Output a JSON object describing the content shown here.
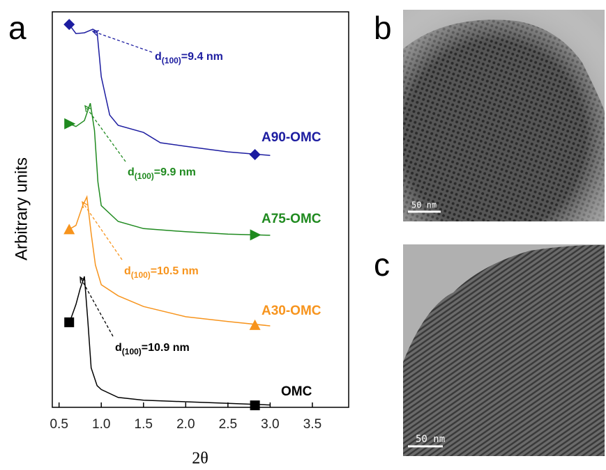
{
  "panel_labels": [
    "a",
    "b",
    "c"
  ],
  "chart_data": {
    "type": "line",
    "xlabel": "2θ",
    "ylabel": "Arbitrary units",
    "xlim": [
      0.42,
      3.93
    ],
    "ylim": [
      0,
      100
    ],
    "xticks": [
      0.5,
      {
        "value": 1,
        "label": "1.0"
      },
      1.5,
      {
        "value": 2,
        "label": "2.0"
      },
      2.5,
      {
        "value": 3,
        "label": "3.0"
      },
      3.5
    ],
    "series": [
      {
        "name": "OMC",
        "color": "#000000",
        "marker": "square",
        "x": [
          0.62,
          0.65,
          0.7,
          0.75,
          0.8,
          0.84,
          0.88,
          0.95,
          1.0,
          1.2,
          1.5,
          2.0,
          2.5,
          3.0
        ],
        "values": [
          21.5,
          23,
          26,
          30,
          33.1,
          22,
          10,
          5.5,
          4.5,
          2.5,
          1.8,
          1.4,
          1.0,
          0.6
        ],
        "markers": {
          "x": [
            0.62,
            2.82
          ],
          "values": [
            21.5,
            0.5
          ]
        },
        "annotation": {
          "d": "d",
          "sub": "(100)",
          "rest": "=10.9 nm"
        }
      },
      {
        "name": "A30-OMC",
        "color": "#f7941d",
        "marker": "triangle-up",
        "x": [
          0.62,
          0.7,
          0.78,
          0.83,
          0.88,
          0.93,
          1.0,
          1.2,
          1.5,
          2.0,
          2.5,
          3.0
        ],
        "values": [
          45,
          46,
          51,
          53.2,
          44,
          36,
          31,
          28.2,
          25.5,
          22.9,
          21.7,
          20.6
        ],
        "markers": {
          "x": [
            0.62,
            2.82
          ],
          "values": [
            45,
            20.8
          ]
        },
        "annotation": {
          "d": "d",
          "sub": "(100)",
          "rest": "=10.5 nm"
        }
      },
      {
        "name": "A75-OMC",
        "color": "#1f8a1f",
        "marker": "triangle-right",
        "x": [
          0.62,
          0.7,
          0.8,
          0.87,
          0.92,
          0.96,
          1.0,
          1.2,
          1.5,
          2.0,
          2.5,
          3.0
        ],
        "values": [
          71.7,
          71,
          72.5,
          76.9,
          70,
          57,
          51,
          47,
          45.2,
          44.4,
          43.8,
          43.5
        ],
        "markers": {
          "x": [
            0.62,
            2.82
          ],
          "values": [
            71.7,
            43.6
          ]
        },
        "annotation": {
          "d": "d",
          "sub": "(100)",
          "rest": "=9.9 nm"
        }
      },
      {
        "name": "A90-OMC",
        "color": "#1c1ca0",
        "marker": "diamond",
        "x": [
          0.62,
          0.7,
          0.8,
          0.9,
          0.95,
          1.0,
          1.1,
          1.2,
          1.5,
          1.7,
          2.0,
          2.5,
          3.0
        ],
        "values": [
          96.8,
          94.5,
          94.7,
          95.6,
          95,
          83.6,
          73.9,
          71.3,
          69.5,
          66.9,
          66,
          64.6,
          63.7
        ],
        "markers": {
          "x": [
            0.62,
            2.82
          ],
          "values": [
            96.8,
            63.9
          ]
        },
        "annotation": {
          "d": "d",
          "sub": "(100)",
          "rest": "=9.4 nm"
        }
      }
    ]
  },
  "images": [
    {
      "scale_bar": "50 nm"
    },
    {
      "scale_bar": "50 nm"
    }
  ]
}
